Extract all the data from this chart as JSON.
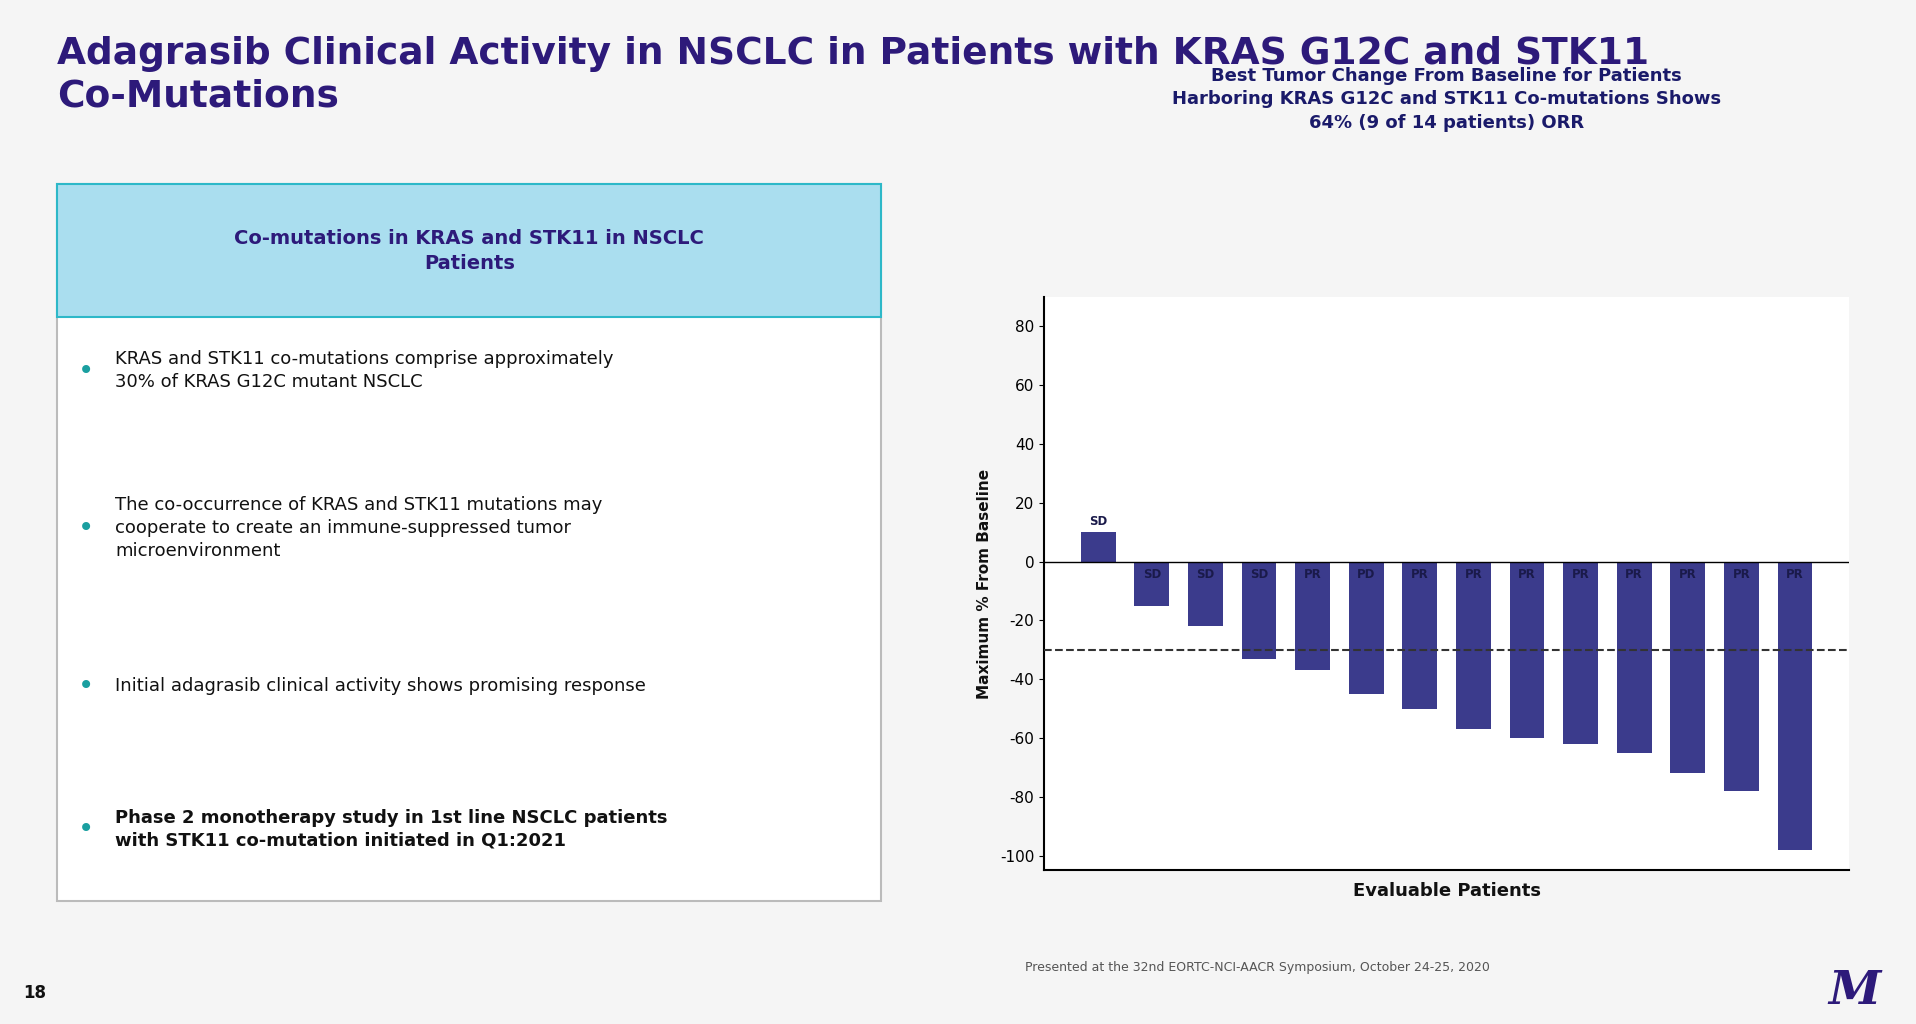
{
  "title_main": "Adagrasib Clinical Activity in NSCLC in Patients with KRAS G12C and STK11\nCo-Mutations",
  "title_main_color": "#2D1A7A",
  "background_color": "#F5F5F5",
  "slide_number": "18",
  "footer_text": "Presented at the 32nd EORTC-NCI-AACR Symposium, October 24-25, 2020",
  "left_box": {
    "header": "Co-mutations in KRAS and STK11 in NSCLC\nPatients",
    "header_bg": "#AADEEF",
    "header_color": "#2D1A7A",
    "box_border_color": "#AAAAAA",
    "box_bg": "#FFFFFF",
    "bullets": [
      {
        "text": "KRAS and STK11 co-mutations comprise approximately\n30% of KRAS G12C mutant NSCLC",
        "bold": false
      },
      {
        "text": "The co-occurrence of KRAS and STK11 mutations may\ncooperate to create an immune-suppressed tumor\nmicroenvironment",
        "bold": false
      },
      {
        "text": "Initial adagrasib clinical activity shows promising response",
        "bold": false
      },
      {
        "text": "Phase 2 monotherapy study in 1st line NSCLC patients\nwith STK11 co-mutation initiated in Q1:2021",
        "bold": true
      }
    ],
    "bullet_color": "#1A9FA0"
  },
  "chart": {
    "title": "Best Tumor Change From Baseline for Patients\nHarboring KRAS G12C and STK11 Co-mutations Shows\n64% (9 of 14 patients) ORR",
    "title_color": "#1A1A6A",
    "bar_values": [
      10,
      -15,
      -22,
      -33,
      -37,
      -45,
      -50,
      -57,
      -60,
      -62,
      -65,
      -72,
      -78,
      -98
    ],
    "bar_labels": [
      "SD",
      "SD",
      "SD",
      "SD",
      "PR",
      "PD",
      "PR",
      "PR",
      "PR",
      "PR",
      "PR",
      "PR",
      "PR",
      "PR"
    ],
    "bar_color": "#3B3B8C",
    "dashed_line_y": -30,
    "xlabel": "Evaluable Patients",
    "ylabel": "Maximum % From Baseline",
    "ylim": [
      -105,
      90
    ],
    "yticks": [
      -100,
      -80,
      -60,
      -40,
      -20,
      0,
      20,
      40,
      60,
      80
    ]
  }
}
